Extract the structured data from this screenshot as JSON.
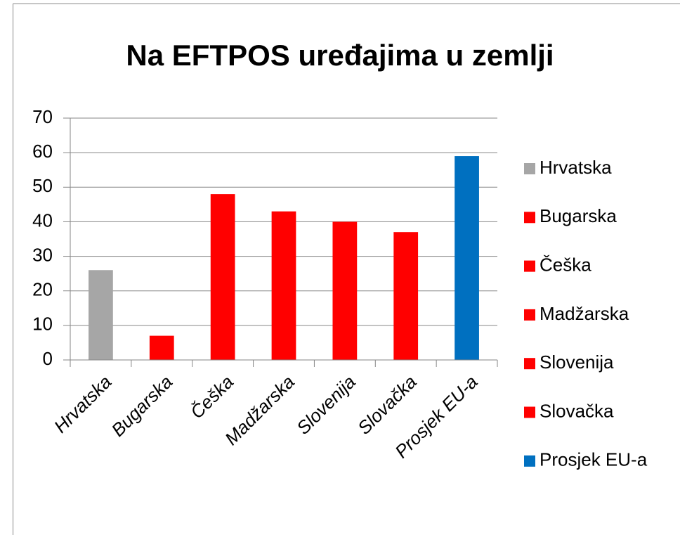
{
  "chart_data": {
    "type": "bar",
    "title": "Na EFTPOS uređajima  u zemlji",
    "categories": [
      "Hrvatska",
      "Bugarska",
      "Češka",
      "Madžarska",
      "Slovenija",
      "Slovačka",
      "Prosjek EU-a"
    ],
    "values": [
      26,
      7,
      48,
      43,
      40,
      37,
      59
    ],
    "colors": [
      "#a6a6a6",
      "#ff0000",
      "#ff0000",
      "#ff0000",
      "#ff0000",
      "#ff0000",
      "#0070c0"
    ],
    "ylim": [
      0,
      70
    ],
    "yticks": [
      0,
      10,
      20,
      30,
      40,
      50,
      60,
      70
    ],
    "grid": true,
    "legend": "right"
  }
}
